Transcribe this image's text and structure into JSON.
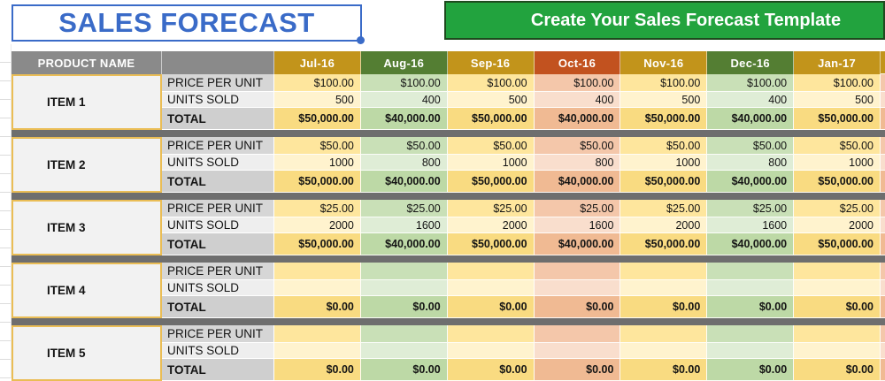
{
  "title": {
    "text": "SALES FORECAST"
  },
  "banner": {
    "text": "Create Your Sales Forecast Template"
  },
  "table": {
    "product_header": "PRODUCT NAME",
    "row_labels": [
      "PRICE PER UNIT",
      "UNITS SOLD",
      "TOTAL"
    ],
    "months": [
      {
        "label": "Jul-16",
        "scheme": "gold"
      },
      {
        "label": "Aug-16",
        "scheme": "green"
      },
      {
        "label": "Sep-16",
        "scheme": "gold"
      },
      {
        "label": "Oct-16",
        "scheme": "orange"
      },
      {
        "label": "Nov-16",
        "scheme": "gold"
      },
      {
        "label": "Dec-16",
        "scheme": "green"
      },
      {
        "label": "Jan-17",
        "scheme": "gold"
      }
    ],
    "items": [
      {
        "name": "ITEM 1",
        "price": [
          "$100.00",
          "$100.00",
          "$100.00",
          "$100.00",
          "$100.00",
          "$100.00",
          "$100.00"
        ],
        "units": [
          "500",
          "400",
          "500",
          "400",
          "500",
          "400",
          "500"
        ],
        "total": [
          "$50,000.00",
          "$40,000.00",
          "$50,000.00",
          "$40,000.00",
          "$50,000.00",
          "$40,000.00",
          "$50,000.00"
        ]
      },
      {
        "name": "ITEM 2",
        "price": [
          "$50.00",
          "$50.00",
          "$50.00",
          "$50.00",
          "$50.00",
          "$50.00",
          "$50.00"
        ],
        "units": [
          "1000",
          "800",
          "1000",
          "800",
          "1000",
          "800",
          "1000"
        ],
        "total": [
          "$50,000.00",
          "$40,000.00",
          "$50,000.00",
          "$40,000.00",
          "$50,000.00",
          "$40,000.00",
          "$50,000.00"
        ]
      },
      {
        "name": "ITEM 3",
        "price": [
          "$25.00",
          "$25.00",
          "$25.00",
          "$25.00",
          "$25.00",
          "$25.00",
          "$25.00"
        ],
        "units": [
          "2000",
          "1600",
          "2000",
          "1600",
          "2000",
          "1600",
          "2000"
        ],
        "total": [
          "$50,000.00",
          "$40,000.00",
          "$50,000.00",
          "$40,000.00",
          "$50,000.00",
          "$40,000.00",
          "$50,000.00"
        ]
      },
      {
        "name": "ITEM 4",
        "price": [
          "",
          "",
          "",
          "",
          "",
          "",
          ""
        ],
        "units": [
          "",
          "",
          "",
          "",
          "",
          "",
          ""
        ],
        "total": [
          "$0.00",
          "$0.00",
          "$0.00",
          "$0.00",
          "$0.00",
          "$0.00",
          "$0.00"
        ]
      },
      {
        "name": "ITEM 5",
        "price": [
          "",
          "",
          "",
          "",
          "",
          "",
          ""
        ],
        "units": [
          "",
          "",
          "",
          "",
          "",
          "",
          ""
        ],
        "total": [
          "$0.00",
          "$0.00",
          "$0.00",
          "$0.00",
          "$0.00",
          "$0.00",
          "$0.00"
        ]
      }
    ]
  },
  "colors": {
    "title_blue": "#3A6BC8",
    "banner_green": "#22A33E",
    "header_gray": "#8A8A8A",
    "divider_gray": "#6E6E6E",
    "item_bg": "#F2F2F2",
    "item_border": "#EABD55",
    "label_bg": {
      "price": "#D6D6D6",
      "units": "#EEEEEE",
      "total": "#CFCFCF"
    },
    "schemes": {
      "gold": {
        "header": "#C2941B",
        "price": "#FEE69D",
        "units": "#FFF3CE",
        "total": "#F9DB81"
      },
      "green": {
        "header": "#547E33",
        "price": "#C9E0B7",
        "units": "#DFEDD6",
        "total": "#BDD9A6"
      },
      "orange": {
        "header": "#C2521F",
        "price": "#F4C7AA",
        "units": "#F9DECD",
        "total": "#F0BA93"
      }
    }
  }
}
